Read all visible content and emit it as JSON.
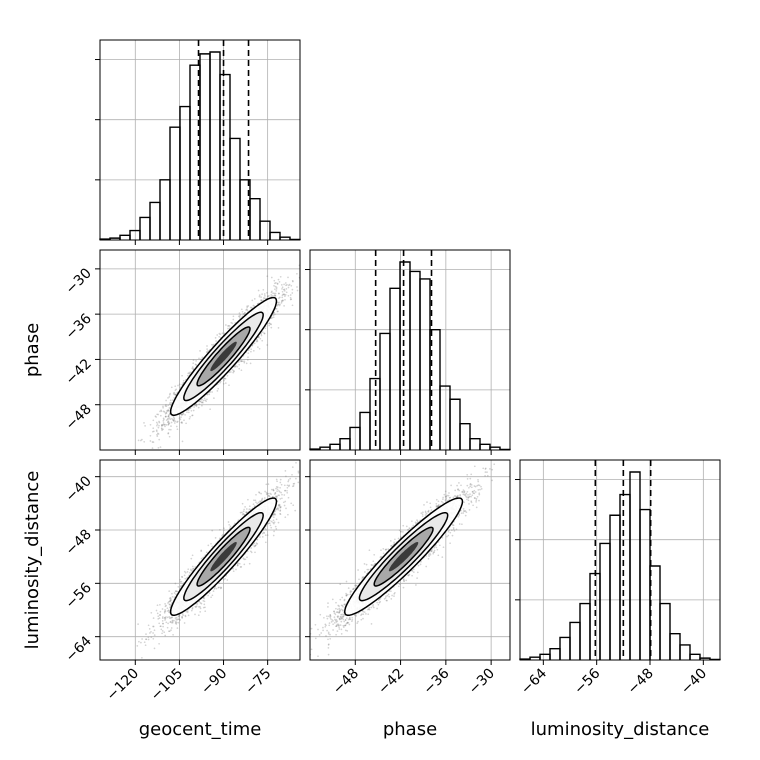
{
  "chart_data": {
    "type": "corner",
    "parameters": [
      {
        "name": "geocent_time",
        "label": "geocent_time",
        "range": [
          -132,
          -64
        ],
        "ticks": [
          -120,
          -105,
          -90,
          -75
        ],
        "tick_labels": [
          "−120",
          "−105",
          "−90",
          "−75"
        ],
        "quantiles": [
          -98.5,
          -90.0,
          -81.5
        ],
        "hist_edges": [
          -132,
          -128.6,
          -125.2,
          -121.8,
          -118.4,
          -115,
          -111.6,
          -108.2,
          -104.8,
          -101.4,
          -98,
          -94.6,
          -91.2,
          -87.8,
          -84.4,
          -81,
          -77.6,
          -74.2,
          -70.8,
          -67.4,
          -64
        ],
        "hist_counts": [
          0.5,
          1,
          2.5,
          5,
          12,
          20,
          32,
          60,
          71,
          93,
          99,
          100,
          88,
          54,
          32,
          22,
          10,
          4,
          1.5,
          0.3
        ]
      },
      {
        "name": "phase",
        "label": "phase",
        "range": [
          -54,
          -27.5
        ],
        "ticks": [
          -48,
          -42,
          -36,
          -30
        ],
        "tick_labels": [
          "−48",
          "−42",
          "−36",
          "−30"
        ],
        "quantiles": [
          -45.3,
          -41.6,
          -37.9
        ],
        "hist_edges": [
          -54,
          -52.675,
          -51.35,
          -50.025,
          -48.7,
          -47.375,
          -46.05,
          -44.725,
          -43.4,
          -42.075,
          -40.75,
          -39.425,
          -38.1,
          -36.775,
          -35.45,
          -34.125,
          -32.8,
          -31.475,
          -30.15,
          -28.825,
          -27.5
        ],
        "hist_counts": [
          0.5,
          1.5,
          3,
          6,
          12,
          20,
          38,
          62,
          86,
          100,
          95,
          91,
          64,
          34,
          27,
          14,
          6,
          3,
          1.5,
          0.3
        ]
      },
      {
        "name": "luminosity_distance",
        "label": "luminosity_distance",
        "range": [
          -67.5,
          -37.5
        ],
        "ticks": [
          -64,
          -56,
          -48,
          -40
        ],
        "tick_labels": [
          "−64",
          "−56",
          "−48",
          "−40"
        ],
        "quantiles": [
          -56.2,
          -52.0,
          -47.9
        ],
        "hist_edges": [
          -67.5,
          -66,
          -64.5,
          -63,
          -61.5,
          -60,
          -58.5,
          -57,
          -55.5,
          -54,
          -52.5,
          -51,
          -49.5,
          -48,
          -46.5,
          -45,
          -43.5,
          -42,
          -40.5,
          -39,
          -37.5
        ],
        "hist_counts": [
          0.5,
          1.5,
          3,
          6,
          12,
          20,
          30,
          46,
          62,
          77,
          88,
          100,
          80,
          50,
          30,
          14,
          8,
          3,
          1,
          0.3
        ]
      }
    ],
    "pairs": [
      {
        "x": "geocent_time",
        "y": "phase",
        "center": [
          -90.0,
          -41.6
        ],
        "sigma": [
          9.0,
          3.9
        ],
        "correlation": 0.94,
        "n_samples": 4000,
        "contour_levels_sigma": [
          0.5,
          1.0,
          1.5,
          2.0
        ]
      },
      {
        "x": "geocent_time",
        "y": "luminosity_distance",
        "center": [
          -90.0,
          -52.0
        ],
        "sigma": [
          9.0,
          4.4
        ],
        "correlation": 0.94,
        "n_samples": 4000,
        "contour_levels_sigma": [
          0.5,
          1.0,
          1.5,
          2.0
        ]
      },
      {
        "x": "phase",
        "y": "luminosity_distance",
        "center": [
          -41.6,
          -52.0
        ],
        "sigma": [
          3.9,
          4.4
        ],
        "correlation": 0.94,
        "n_samples": 4000,
        "contour_levels_sigma": [
          0.5,
          1.0,
          1.5,
          2.0
        ]
      }
    ],
    "grid": true,
    "colors": {
      "samples": "#808080",
      "contour": "#000000",
      "frame": "#000000",
      "grid": "#b0b0b0"
    }
  }
}
